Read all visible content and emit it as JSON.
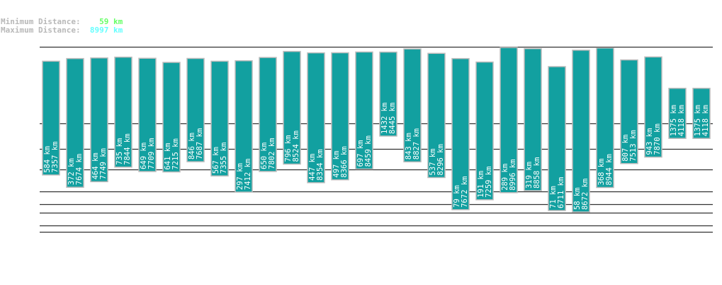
{
  "summary": {
    "min_label": "Minimum Distance:",
    "min_value": "59 km",
    "max_label": "Maximum Distance:",
    "max_value": "8997 km"
  },
  "colors": {
    "bar": "#12a0a0",
    "bar_border": "#bbbbbb",
    "grid": "#333333",
    "min_text": "#66ff66",
    "max_text": "#66ffff"
  },
  "chart_data": {
    "type": "bar",
    "unit": "km",
    "grid": true,
    "series": [
      {
        "values_min": [
          584,
          372,
          464,
          735,
          649,
          641,
          846,
          567,
          297,
          650,
          796,
          447,
          497,
          697,
          1432,
          843,
          537,
          79,
          191,
          289,
          319,
          71,
          58,
          368,
          807,
          943,
          1375,
          1375
        ],
        "values_max": [
          7357,
          7674,
          7749,
          7844,
          7709,
          7215,
          7687,
          7355,
          7412,
          7802,
          8524,
          8354,
          8366,
          8459,
          8445,
          8827,
          8296,
          7672,
          7259,
          8996,
          8858,
          6711,
          8672,
          8944,
          7513,
          7870,
          4118,
          4118
        ]
      }
    ]
  }
}
